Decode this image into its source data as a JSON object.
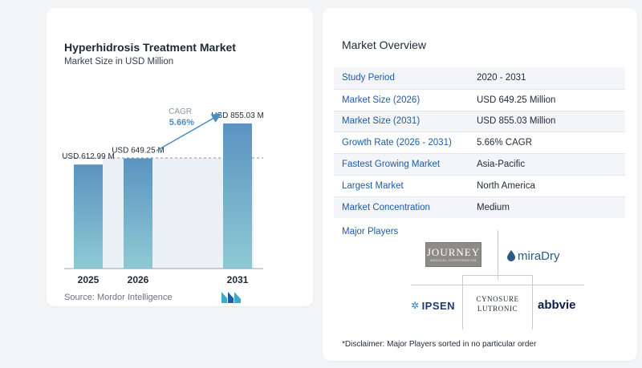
{
  "chart": {
    "title": "Hyperhidrosis Treatment Market",
    "subtitle": "Market Size in USD Million",
    "source": "Source:  Mordor Intelligence",
    "cagr_label": "CAGR",
    "cagr_value": "5.66%"
  },
  "chart_data": {
    "type": "bar",
    "title": "Hyperhidrosis Treatment Market",
    "subtitle": "Market Size in USD Million",
    "categories": [
      "2025",
      "2026",
      "2031"
    ],
    "values": [
      612.99,
      649.25,
      855.03
    ],
    "value_labels": [
      "USD 612.99 M",
      "USD 649.25 M",
      "USD 855.03 M"
    ],
    "cagr": "5.66%",
    "colors": {
      "bar_top": "#5a93c0",
      "bar_bottom": "#8ecad4",
      "accent": "#4a8ec0"
    }
  },
  "overview": {
    "title": "Market Overview",
    "rows": [
      {
        "label": "Study Period",
        "value": "2020 - 2031"
      },
      {
        "label": "Market Size (2026)",
        "value": "USD 649.25 Million"
      },
      {
        "label": "Market Size (2031)",
        "value": "USD 855.03 Million"
      },
      {
        "label": "Growth Rate (2026 - 2031)",
        "value": "5.66% CAGR"
      },
      {
        "label": "Fastest Growing Market",
        "value": "Asia-Pacific"
      },
      {
        "label": "Largest Market",
        "value": "North America"
      },
      {
        "label": "Market Concentration",
        "value": "Medium"
      }
    ],
    "major_players_title": "Major Players",
    "players": {
      "journey": "JOURNEY",
      "journey_sub": "MEDICAL CORPORATION",
      "miradry": "miraDry",
      "ipsen": "IPSEN",
      "cynosure_line1": "CYNOSURE",
      "cynosure_line2": "LUTRONIC",
      "abbvie": "abbvie"
    },
    "disclaimer": "*Disclaimer: Major Players sorted in no particular order"
  }
}
